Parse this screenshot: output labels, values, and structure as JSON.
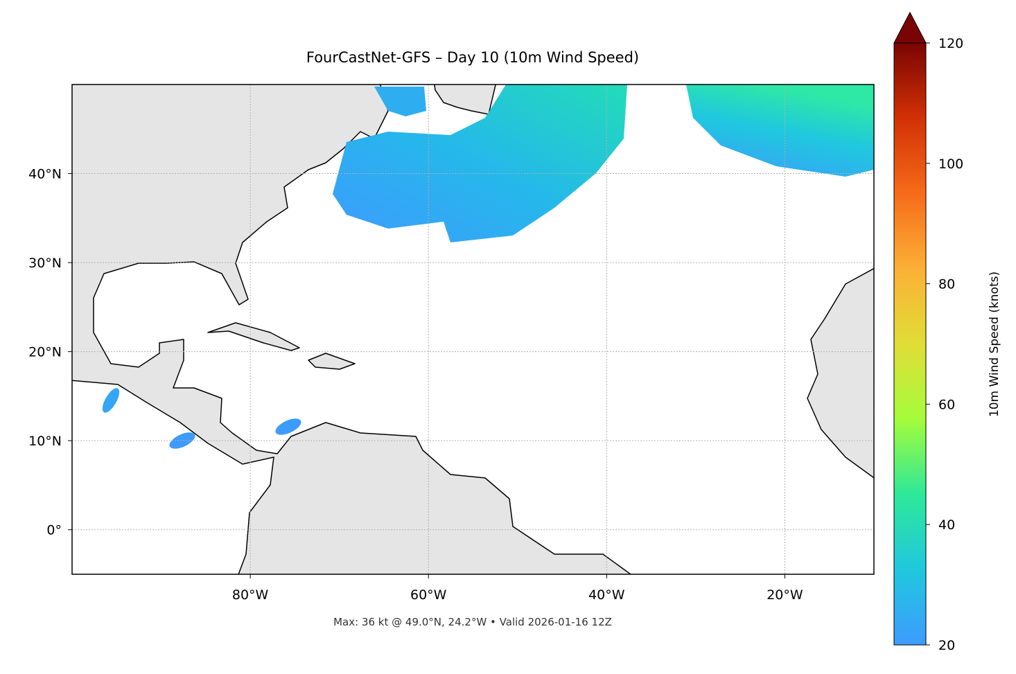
{
  "chart_data": {
    "type": "map",
    "title": "FourCastNet-GFS – Day 10 (10m Wind Speed)",
    "annotation": "Max: 36 kt @ 49.0°N, 24.2°W • Valid 2026-01-16 12Z",
    "xlim": [
      -100,
      -10
    ],
    "ylim": [
      -5,
      50
    ],
    "xticks": [
      {
        "value": -80,
        "label": "80°W"
      },
      {
        "value": -60,
        "label": "60°W"
      },
      {
        "value": -40,
        "label": "40°W"
      },
      {
        "value": -20,
        "label": "20°W"
      }
    ],
    "yticks": [
      {
        "value": 0,
        "label": "0°"
      },
      {
        "value": 10,
        "label": "10°N"
      },
      {
        "value": 20,
        "label": "20°N"
      },
      {
        "value": 30,
        "label": "30°N"
      },
      {
        "value": 40,
        "label": "40°N"
      }
    ],
    "grid": true,
    "colorbar": {
      "label": "10m Wind Speed (knots)",
      "lim": [
        20,
        120
      ],
      "ticks": [
        20,
        40,
        60,
        80,
        100,
        120
      ],
      "extend": "max",
      "colors": [
        "#3e9bfe",
        "#1fc8de",
        "#2ee899",
        "#a4fc3b",
        "#e1dd37",
        "#fcb036",
        "#f66b19",
        "#d23105",
        "#7a0403"
      ]
    }
  }
}
